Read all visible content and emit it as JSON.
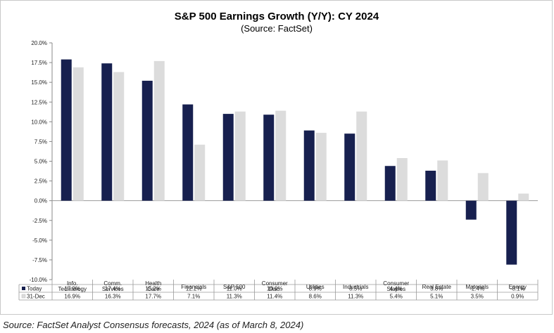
{
  "chart_data": {
    "type": "bar",
    "title": "S&P 500 Earnings Growth (Y/Y): CY 2024",
    "subtitle": "(Source: FactSet)",
    "categories": [
      [
        "Info.",
        "Technology"
      ],
      [
        "Comm.",
        "Services"
      ],
      [
        "Health",
        "Care"
      ],
      [
        "Financials"
      ],
      [
        "S&P 500"
      ],
      [
        "Consumer",
        "Disc."
      ],
      [
        "Utilities"
      ],
      [
        "Industrials"
      ],
      [
        "Consumer",
        "Staples"
      ],
      [
        "Real Estate"
      ],
      [
        "Materials"
      ],
      [
        "Energy"
      ]
    ],
    "series": [
      {
        "name": "Today",
        "color": "#17204f",
        "values": [
          17.9,
          17.4,
          15.2,
          12.2,
          11.0,
          10.9,
          8.9,
          8.5,
          4.4,
          3.8,
          -2.4,
          -8.1
        ],
        "labels": [
          "17.9%",
          "17.4%",
          "15.2%",
          "12.2%",
          "11.0%",
          "10.9%",
          "8.9%",
          "8.5%",
          "4.4%",
          "3.8%",
          "-2.4%",
          "-8.1%"
        ]
      },
      {
        "name": "31-Dec",
        "color": "#dcdcdc",
        "values": [
          16.9,
          16.3,
          17.7,
          7.1,
          11.3,
          11.4,
          8.6,
          11.3,
          5.4,
          5.1,
          3.5,
          0.9
        ],
        "labels": [
          "16.9%",
          "16.3%",
          "17.7%",
          "7.1%",
          "11.3%",
          "11.4%",
          "8.6%",
          "11.3%",
          "5.4%",
          "5.1%",
          "3.5%",
          "0.9%"
        ]
      }
    ],
    "ylim": [
      -10,
      20
    ],
    "yticks": [
      20,
      17.5,
      15,
      12.5,
      10,
      7.5,
      5,
      2.5,
      0,
      -2.5,
      -5,
      -7.5,
      -10
    ],
    "ytick_labels": [
      "20.0%",
      "17.5%",
      "15.0%",
      "12.5%",
      "10.0%",
      "7.5%",
      "5.0%",
      "2.5%",
      "0.0%",
      "-2.5%",
      "-5.0%",
      "-7.5%",
      "-10.0%"
    ],
    "grid": false,
    "legend": "data-table"
  },
  "source_note": "Source: FactSet Analyst Consensus forecasts, 2024 (as of March 8, 2024)"
}
